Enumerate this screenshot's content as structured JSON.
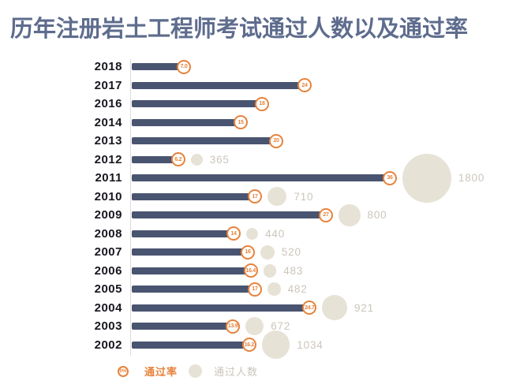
{
  "title": "历年注册岩土工程师考试通过人数以及通过率",
  "legend": {
    "rate_symbol": "0%",
    "rate_label": "通过率",
    "count_label": "通过人数"
  },
  "colors": {
    "bar": "#495470",
    "accent_orange": "#e7833c",
    "bubble_fill": "#e7e2d6",
    "bubble_label": "#cbc6bb",
    "title": "#5e6c8d",
    "year_label": "#17171f",
    "axis_line": "#dcdcdc"
  },
  "rows": [
    {
      "year": "2018",
      "rate": 7.0,
      "rate_label": "7.0",
      "passes": null,
      "passes_label": ""
    },
    {
      "year": "2017",
      "rate": 24,
      "rate_label": "24",
      "passes": null,
      "passes_label": ""
    },
    {
      "year": "2016",
      "rate": 18,
      "rate_label": "18",
      "passes": null,
      "passes_label": ""
    },
    {
      "year": "2014",
      "rate": 15,
      "rate_label": "15",
      "passes": null,
      "passes_label": ""
    },
    {
      "year": "2013",
      "rate": 20,
      "rate_label": "20",
      "passes": null,
      "passes_label": ""
    },
    {
      "year": "2012",
      "rate": 6.2,
      "rate_label": "6.2",
      "passes": 365,
      "passes_label": "365"
    },
    {
      "year": "2011",
      "rate": 36,
      "rate_label": "36",
      "passes": 1800,
      "passes_label": "1800"
    },
    {
      "year": "2010",
      "rate": 17,
      "rate_label": "17",
      "passes": 710,
      "passes_label": "710"
    },
    {
      "year": "2009",
      "rate": 27,
      "rate_label": "27",
      "passes": 800,
      "passes_label": "800"
    },
    {
      "year": "2008",
      "rate": 14,
      "rate_label": "14",
      "passes": 440,
      "passes_label": "440"
    },
    {
      "year": "2007",
      "rate": 16,
      "rate_label": "16",
      "passes": 520,
      "passes_label": "520"
    },
    {
      "year": "2006",
      "rate": 16.4,
      "rate_label": "16.4",
      "passes": 483,
      "passes_label": "483"
    },
    {
      "year": "2005",
      "rate": 17,
      "rate_label": "17",
      "passes": 482,
      "passes_label": "482"
    },
    {
      "year": "2004",
      "rate": 24.7,
      "rate_label": "24.7",
      "passes": 921,
      "passes_label": "921"
    },
    {
      "year": "2003",
      "rate": 13.9,
      "rate_label": "13.9",
      "passes": 672,
      "passes_label": "672"
    },
    {
      "year": "2002",
      "rate": 16.2,
      "rate_label": "16.2",
      "passes": 1034,
      "passes_label": "1034"
    }
  ],
  "chart_data": {
    "type": "bar",
    "orientation": "horizontal",
    "title": "历年注册岩土工程师考试通过人数以及通过率",
    "categories": [
      "2018",
      "2017",
      "2016",
      "2014",
      "2013",
      "2012",
      "2011",
      "2010",
      "2009",
      "2008",
      "2007",
      "2006",
      "2005",
      "2004",
      "2003",
      "2002"
    ],
    "series": [
      {
        "name": "通过率",
        "unit": "%",
        "style": "bar-with-circled-data-label",
        "values": [
          7.0,
          24,
          18,
          15,
          20,
          6.2,
          36,
          17,
          27,
          14,
          16,
          16.4,
          17,
          24.7,
          13.9,
          16.2
        ]
      },
      {
        "name": "通过人数",
        "style": "bubble-sized-by-value",
        "values": [
          null,
          null,
          null,
          null,
          null,
          365,
          1800,
          710,
          800,
          440,
          520,
          483,
          482,
          921,
          672,
          1034
        ]
      }
    ],
    "xlim": [
      0,
      40
    ],
    "grid": false,
    "legend_position": "bottom-left"
  }
}
